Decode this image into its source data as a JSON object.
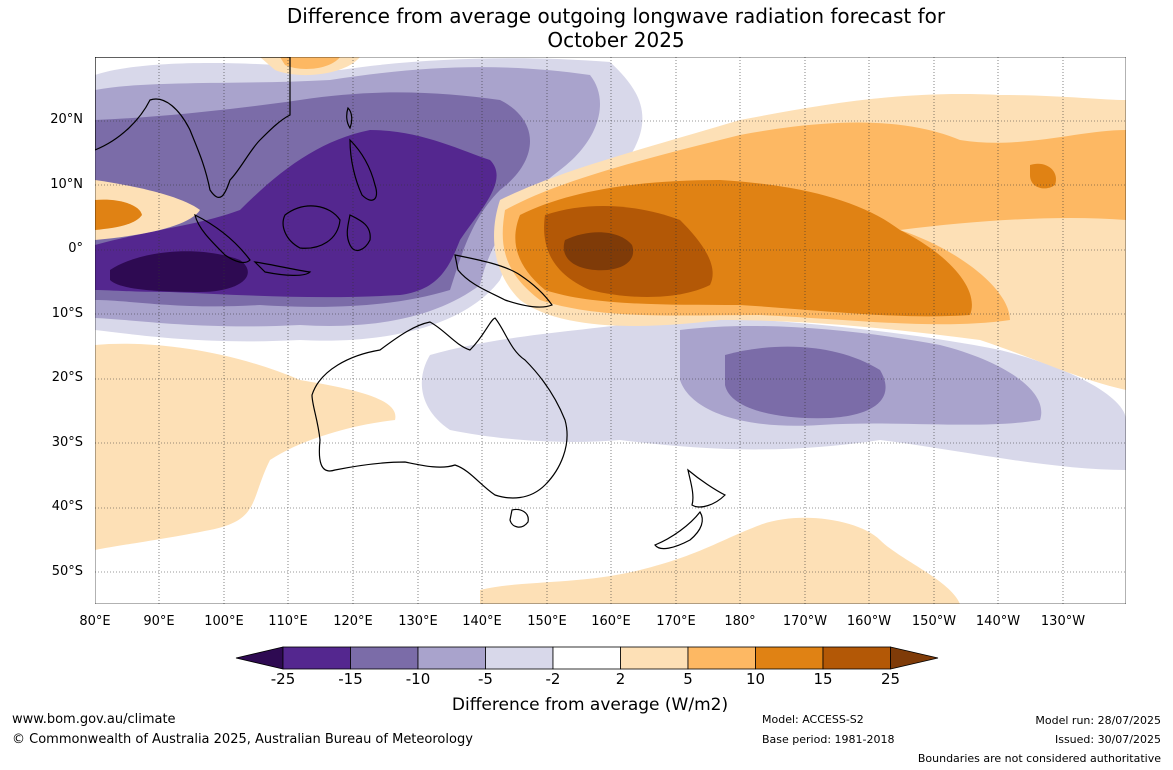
{
  "title": {
    "line1": "Difference from average outgoing longwave radiation forecast for",
    "line2": "October 2025"
  },
  "map": {
    "lat_labels": [
      "20°N",
      "10°N",
      "0°",
      "10°S",
      "20°S",
      "30°S",
      "40°S",
      "50°S"
    ],
    "lon_labels": [
      "80°E",
      "90°E",
      "100°E",
      "110°E",
      "120°E",
      "130°E",
      "140°E",
      "150°E",
      "160°E",
      "170°E",
      "180°",
      "170°W",
      "160°W",
      "150°W",
      "140°W",
      "130°W"
    ],
    "anomaly_colors": {
      "below_-25": "#2e0a52",
      "-25_to_-15": "#54278f",
      "-15_to_-10": "#7b6ca8",
      "-10_to_-5": "#a9a3cc",
      "-5_to_-2": "#d8d8ea",
      "-2_to_2": "#ffffff",
      "2_to_5": "#fde0b6",
      "5_to_10": "#fdb863",
      "10_to_15": "#e08214",
      "15_to_25": "#b35806",
      "above_25": "#7f3b08"
    }
  },
  "colorbar": {
    "ticks": [
      "-25",
      "-15",
      "-10",
      "-5",
      "-2",
      "2",
      "5",
      "10",
      "15",
      "25"
    ],
    "label": "Difference from average (W/m2)"
  },
  "footer": {
    "website": "www.bom.gov.au/climate",
    "copyright": "© Commonwealth of Australia 2025, Australian Bureau of Meteorology",
    "model": "Model: ACCESS-S2",
    "base_period": "Base period: 1981-2018",
    "model_run": "Model run: 28/07/2025",
    "issued": "Issued: 30/07/2025",
    "disclaimer": "Boundaries are not considered authoritative"
  }
}
